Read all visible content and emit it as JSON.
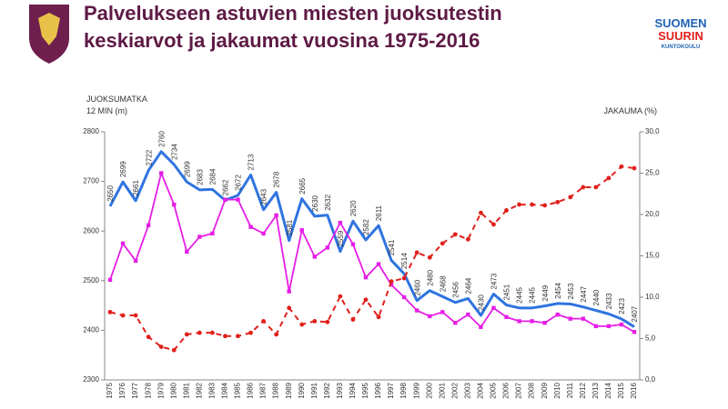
{
  "brand": [
    "SUOMEN",
    "SUURIN",
    "KUNTOKOULU"
  ],
  "chart_data": {
    "type": "line",
    "title": [
      "Palvelukseen astuvien miesten juoksutestin",
      "keskiarvot ja jakaumat vuosina 1975-2016"
    ],
    "y_label": [
      "JUOKSUMATKA",
      "12 MIN (m)"
    ],
    "y2_label": "JAKAUMA  (%)",
    "categories": [
      "1975",
      "1976",
      "1977",
      "1978",
      "1979",
      "1980",
      "1981",
      "1982",
      "1983",
      "1984",
      "1985",
      "1986",
      "1987",
      "1988",
      "1989",
      "1990",
      "1991",
      "1992",
      "1993",
      "1994",
      "1995",
      "1996",
      "1997",
      "1998",
      "1999",
      "2000",
      "2001",
      "2002",
      "2003",
      "2004",
      "2005",
      "2006",
      "2007",
      "2008",
      "2009",
      "2010",
      "2011",
      "2012",
      "2013",
      "2014",
      "2015",
      "2016"
    ],
    "ylim": [
      2300,
      2800
    ],
    "yticks": [
      2300,
      2400,
      2500,
      2600,
      2700,
      2800
    ],
    "y2lim": [
      0,
      30
    ],
    "y2ticks": [
      {
        "value": 0,
        "label": "0,0"
      },
      {
        "value": 5,
        "label": "5,0"
      },
      {
        "value": 10,
        "label": "10,0"
      },
      {
        "value": 15,
        "label": "15,0"
      },
      {
        "value": 20,
        "label": "20,0"
      },
      {
        "value": 25,
        "label": "25,0"
      },
      {
        "value": 30,
        "label": "30,0"
      }
    ],
    "series": [
      {
        "color": "#2f74e0",
        "width": 3,
        "data_labels": true,
        "values": [
          2650,
          2699,
          2661,
          2722,
          2760,
          2734,
          2699,
          2683,
          2684,
          2662,
          2672,
          2713,
          2643,
          2678,
          2581,
          2665,
          2630,
          2632,
          2559,
          2620,
          2582,
          2611,
          2541,
          2514,
          2460,
          2480,
          2468,
          2456,
          2464,
          2430,
          2473,
          2451,
          2445,
          2445,
          2449,
          2454,
          2453,
          2447,
          2440,
          2433,
          2423,
          2407
        ]
      },
      {
        "color": "#e61ee6",
        "width": 1.8,
        "axis": "y2",
        "marker": "square",
        "values": [
          12.1,
          16.5,
          14.4,
          18.7,
          25.0,
          21.2,
          15.5,
          17.3,
          17.7,
          21.8,
          21.8,
          18.5,
          17.7,
          19.9,
          10.7,
          18.1,
          14.9,
          16.0,
          19.0,
          16.4,
          12.4,
          14.0,
          11.5,
          10.0,
          8.4,
          7.7,
          8.2,
          6.9,
          7.9,
          6.4,
          8.7,
          7.6,
          7.1,
          7.1,
          6.9,
          7.9,
          7.4,
          7.4,
          6.5,
          6.5,
          6.7,
          5.8
        ]
      },
      {
        "color": "#e0201b",
        "width": 2,
        "axis": "y2",
        "marker": "circle",
        "dashed": true,
        "values": [
          8.2,
          7.8,
          7.8,
          5.2,
          4.0,
          3.6,
          5.5,
          5.7,
          5.7,
          5.3,
          5.3,
          5.7,
          7.1,
          5.5,
          8.7,
          6.7,
          7.1,
          7.0,
          10.1,
          7.3,
          9.7,
          7.6,
          11.9,
          12.3,
          15.4,
          14.8,
          16.5,
          17.6,
          17.0,
          20.2,
          18.8,
          20.5,
          21.2,
          21.2,
          21.1,
          21.5,
          22.1,
          23.3,
          23.3,
          24.4,
          25.8,
          25.6
        ]
      }
    ]
  }
}
